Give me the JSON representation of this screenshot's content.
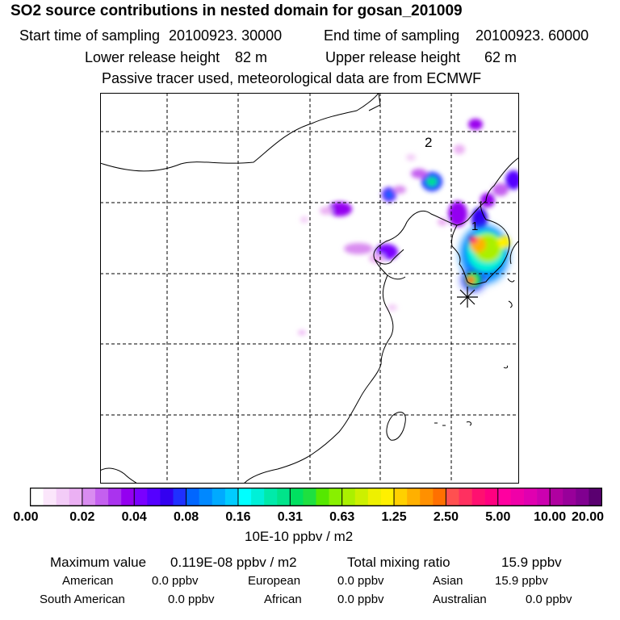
{
  "title": "SO2 source contributions in nested domain for gosan_201009",
  "header": {
    "start_label": "Start time of sampling",
    "start_value": "20100923. 30000",
    "end_label": "End time of sampling",
    "end_value": "20100923. 60000",
    "lower_label": "Lower release height",
    "lower_value": "82 m",
    "upper_label": "Upper release height",
    "upper_value": "62 m",
    "note": "Passive tracer used, meteorological data are from ECMWF"
  },
  "map": {
    "point_labels": [
      "2",
      "1"
    ]
  },
  "colorbar": {
    "ticks": [
      "0.00",
      "0.02",
      "0.04",
      "0.08",
      "0.16",
      "0.31",
      "0.63",
      "1.25",
      "2.50",
      "5.00",
      "10.00",
      "20.00"
    ],
    "unit": "10E-10 ppbv / m2",
    "colors": [
      "#ffffff",
      "#fbe6fb",
      "#f3ccf7",
      "#ebb0f3",
      "#d98cf0",
      "#c460ef",
      "#aa33ee",
      "#9400f0",
      "#7a00ff",
      "#5500ff",
      "#3300f0",
      "#1f30ff",
      "#0066ff",
      "#0088ff",
      "#00aaff",
      "#00ccff",
      "#00ffff",
      "#00f0d8",
      "#00eaaa",
      "#00e48a",
      "#00e060",
      "#1ee040",
      "#55e800",
      "#88f000",
      "#aaf000",
      "#ccf000",
      "#eef000",
      "#fff000",
      "#ffd000",
      "#ffb000",
      "#ff9000",
      "#ff7000",
      "#ff5050",
      "#ff3060",
      "#ff1070",
      "#ff0080",
      "#ff00a0",
      "#f000a8",
      "#e000b0",
      "#cc00b0",
      "#b000a0",
      "#98009a",
      "#800090",
      "#5a0070"
    ]
  },
  "stats": {
    "max_label": "Maximum value",
    "max_value": "0.119E-08 ppbv / m2",
    "total_label": "Total mixing ratio",
    "total_value": "15.9 ppbv",
    "regions": [
      {
        "name": "American",
        "value": "0.0 ppbv"
      },
      {
        "name": "European",
        "value": "0.0 ppbv"
      },
      {
        "name": "Asian",
        "value": "15.9 ppbv"
      },
      {
        "name": "South American",
        "value": "0.0 ppbv"
      },
      {
        "name": "African",
        "value": "0.0 ppbv"
      },
      {
        "name": "Australian",
        "value": "0.0 ppbv"
      }
    ]
  }
}
